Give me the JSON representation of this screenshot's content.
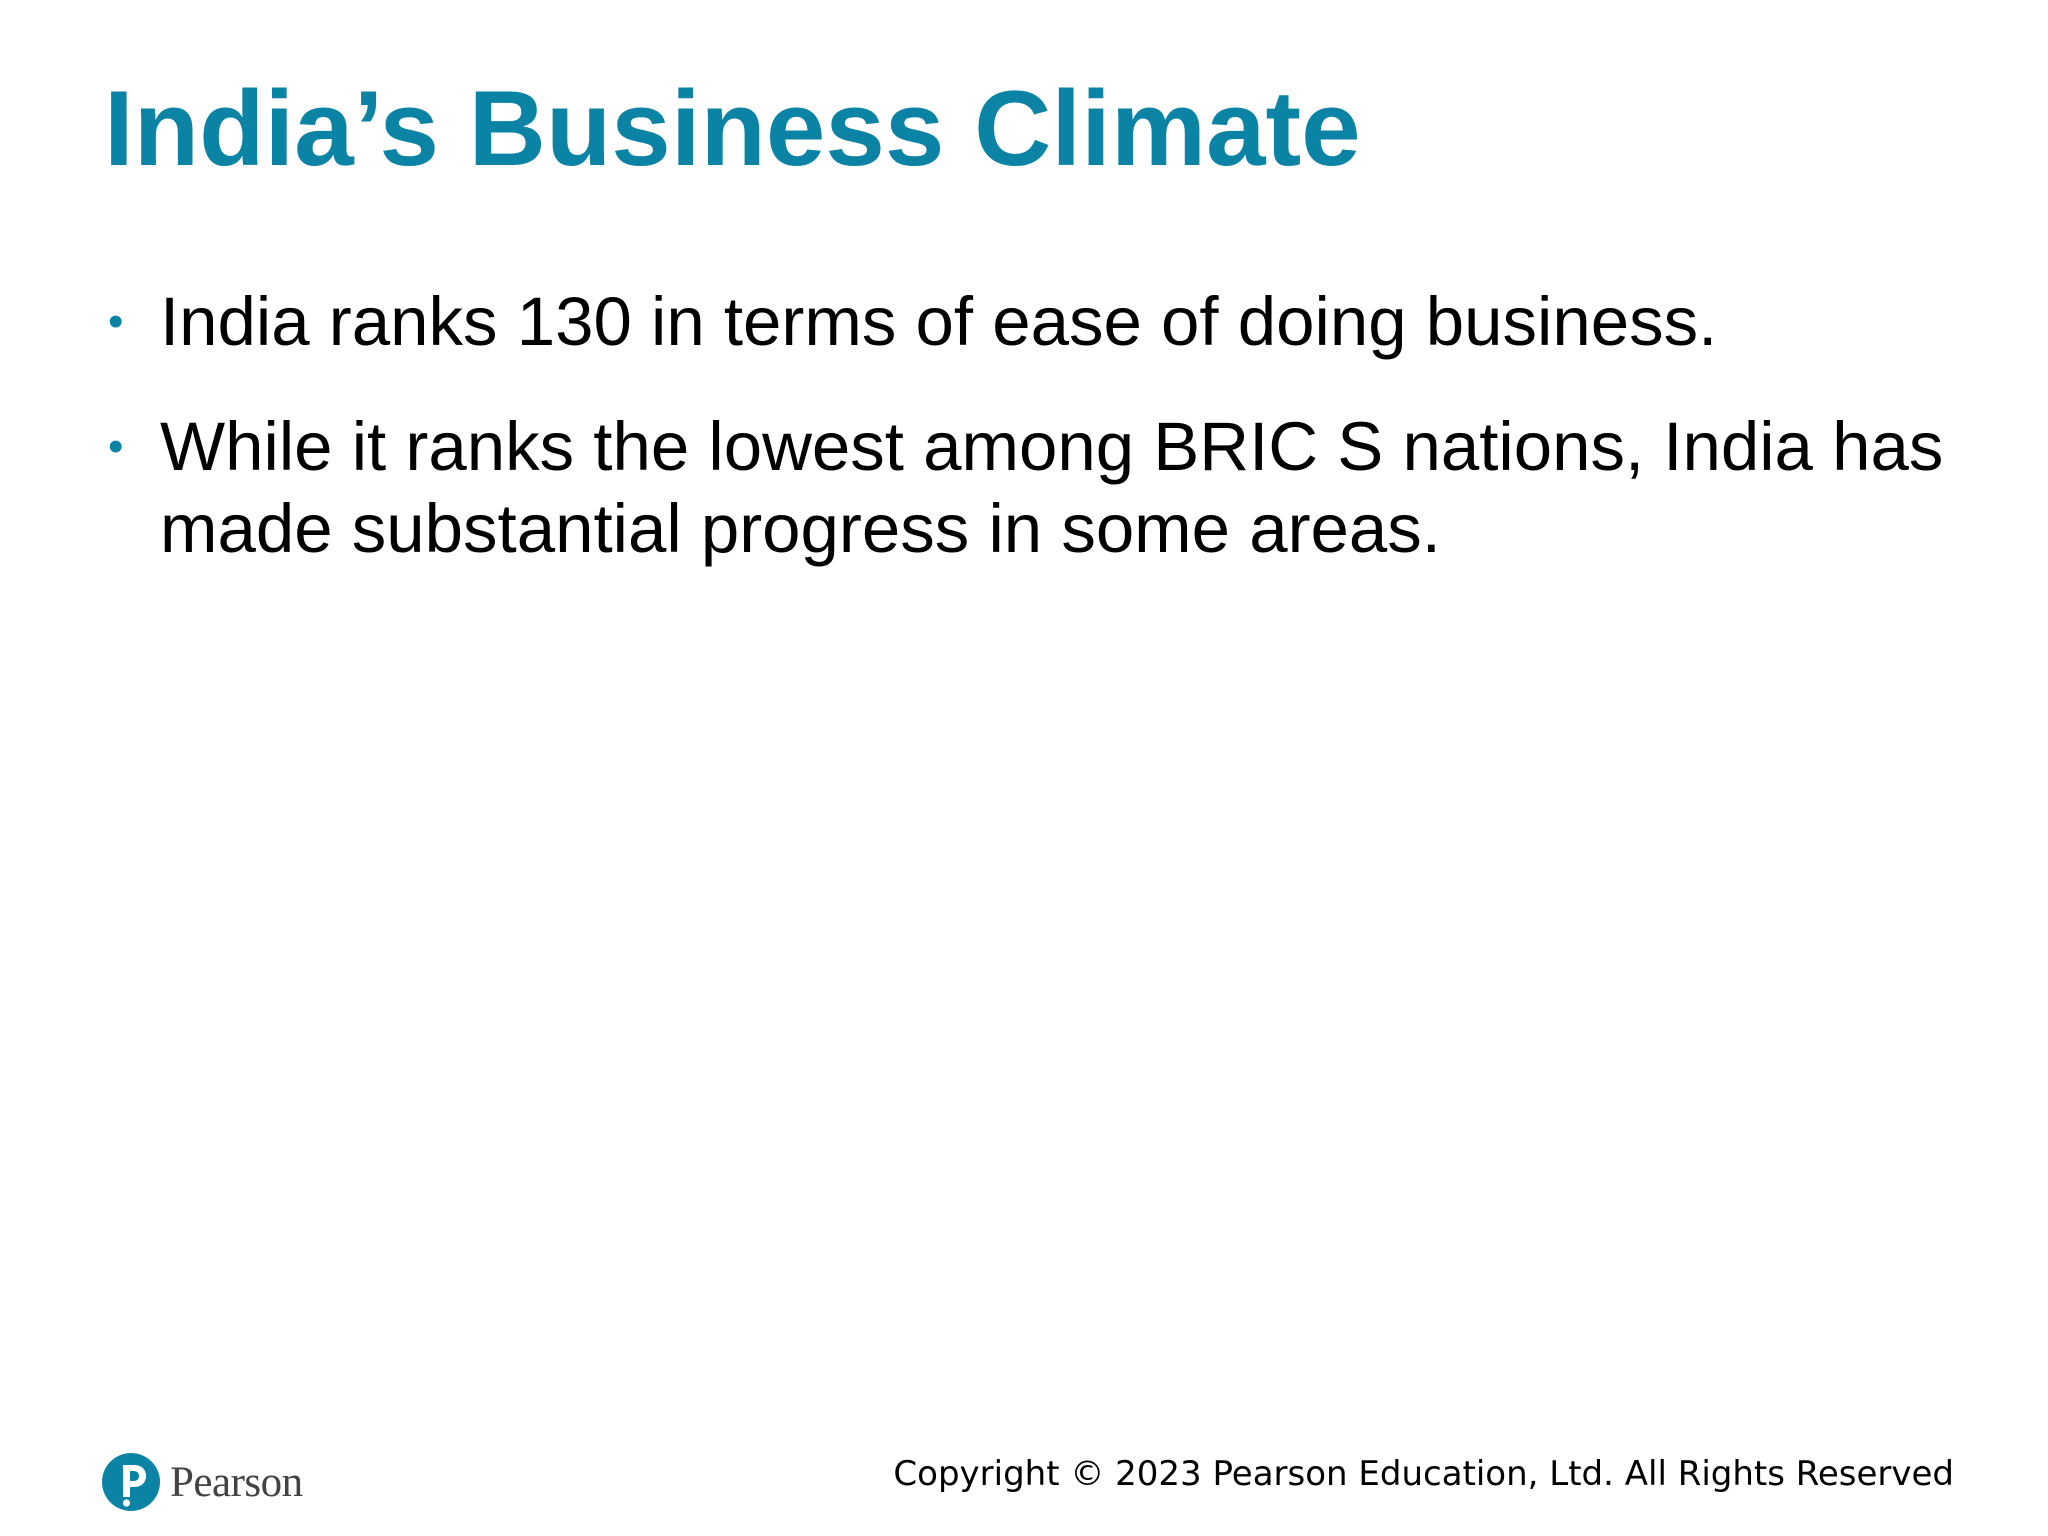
{
  "slide": {
    "title": "India’s Business Climate",
    "bullets": [
      {
        "marker": "•",
        "text": "India ranks 130 in terms of ease of doing business."
      },
      {
        "marker": "•",
        "text": "While it ranks the lowest among BRIC S nations, India has made substantial progress in some areas."
      }
    ]
  },
  "footer": {
    "logo_text": "Pearson",
    "copyright": "Copyright © 2023 Pearson Education, Ltd. All Rights Reserved"
  },
  "colors": {
    "accent": "#0b83a5",
    "body_text": "#000000",
    "logo_text": "#434343",
    "background": "#ffffff"
  },
  "icons": {
    "logo": "pearson-logo-icon"
  }
}
